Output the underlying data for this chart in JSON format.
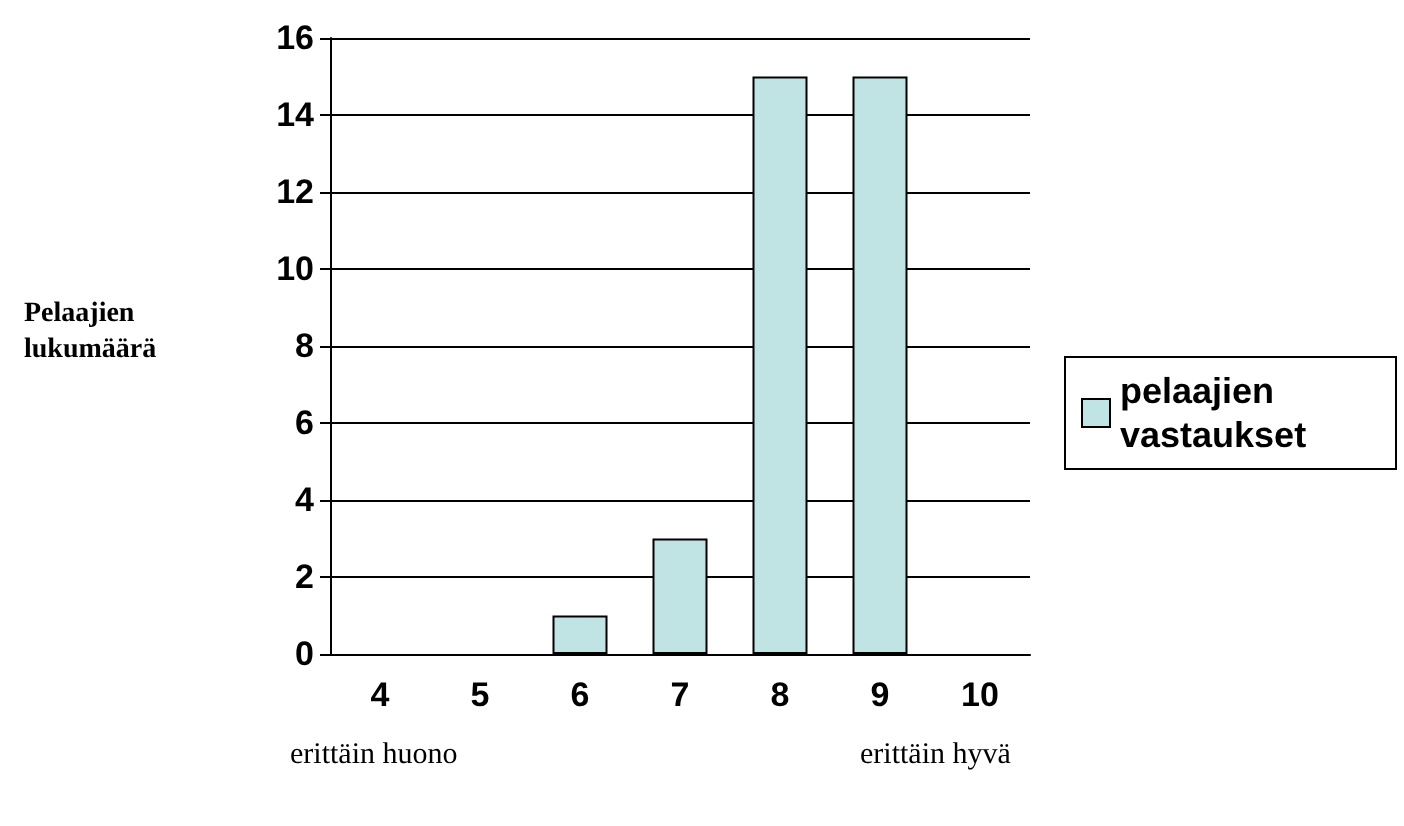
{
  "chart_data": {
    "type": "bar",
    "ylabel": "Pelaajien lukumäärä",
    "categories": [
      "4",
      "5",
      "6",
      "7",
      "8",
      "9",
      "10"
    ],
    "series": [
      {
        "name": "pelaajien vastaukset",
        "color": "#c0e4e4",
        "values": [
          0,
          0,
          1,
          3,
          15,
          15,
          0
        ]
      }
    ],
    "ylim": [
      0,
      16
    ],
    "yticks": [
      0,
      2,
      4,
      6,
      8,
      10,
      12,
      14,
      16
    ],
    "grid": "y",
    "legend": "right",
    "annotations": [
      "erittäin huono",
      "erittäin hyvä"
    ]
  }
}
